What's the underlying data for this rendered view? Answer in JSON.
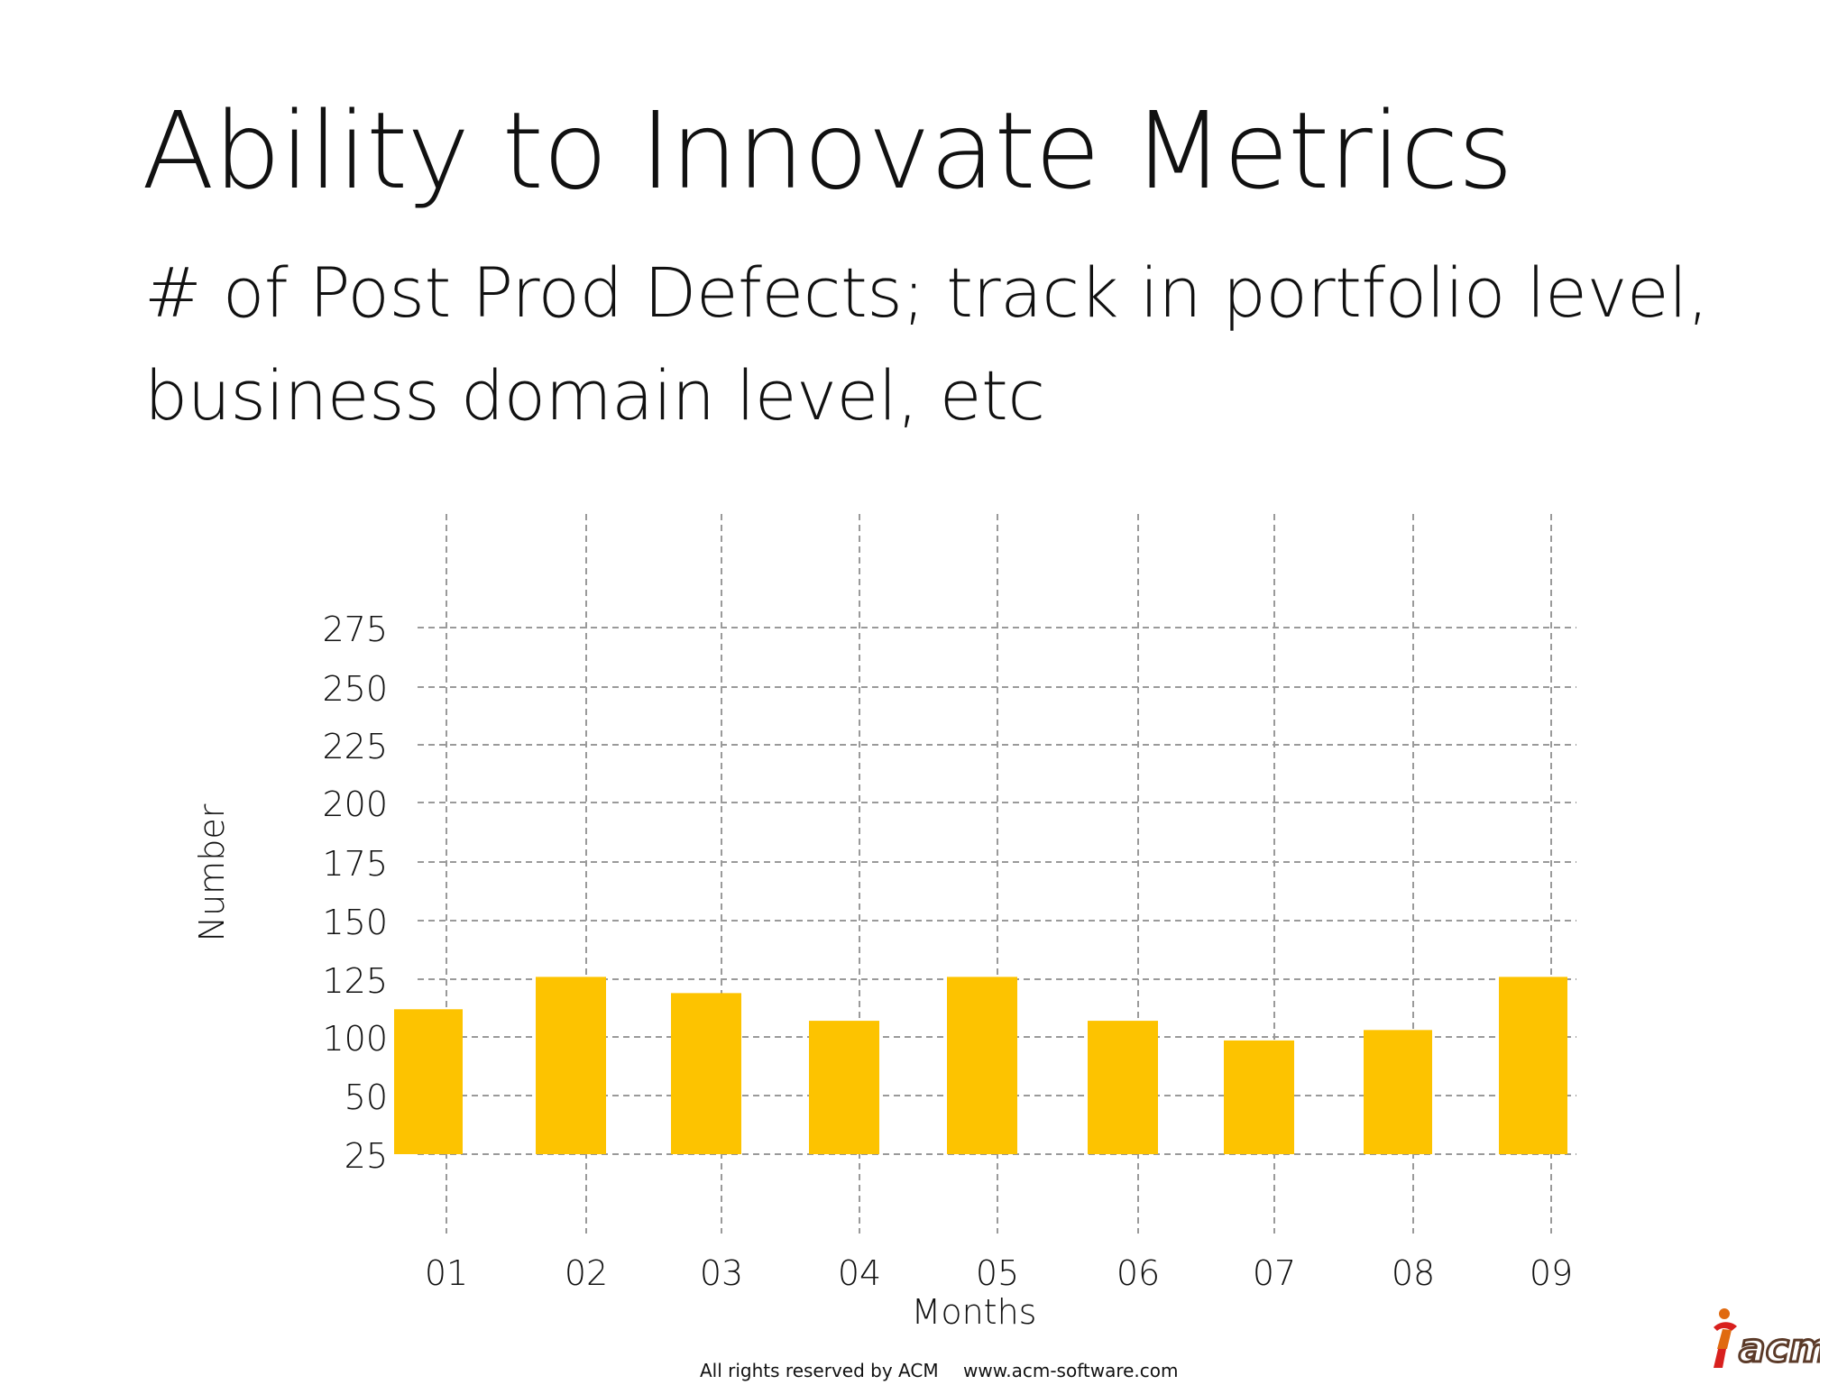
{
  "slide": {
    "title": "Ability to Innovate Metrics",
    "subtitle_lines": [
      "# of Post Prod Defects; track in portfolio level,",
      "business domain level, etc"
    ],
    "footer": {
      "rights": "All rights reserved by ACM",
      "website": "www.acm-software.com"
    },
    "logo": {
      "text": "acm",
      "icon": "acm-figure-logo-icon"
    }
  },
  "colors": {
    "bar": "#FDC300",
    "grid": "#9A9A9A",
    "text": "#111111",
    "logo_orange": "#E06A10",
    "logo_red": "#D8201E"
  },
  "chart_data": {
    "type": "bar",
    "categories": [
      "01",
      "02",
      "03",
      "04",
      "05",
      "06",
      "07",
      "08",
      "09"
    ],
    "values": [
      112,
      126,
      119,
      107,
      126,
      107,
      97,
      103,
      126
    ],
    "y_ticks": [
      25,
      50,
      100,
      125,
      150,
      175,
      200,
      225,
      250,
      275
    ],
    "ylim": [
      25,
      275
    ],
    "xlabel": "Months",
    "ylabel": "Number",
    "grid": true,
    "grid_style": "dashed",
    "title": ""
  }
}
